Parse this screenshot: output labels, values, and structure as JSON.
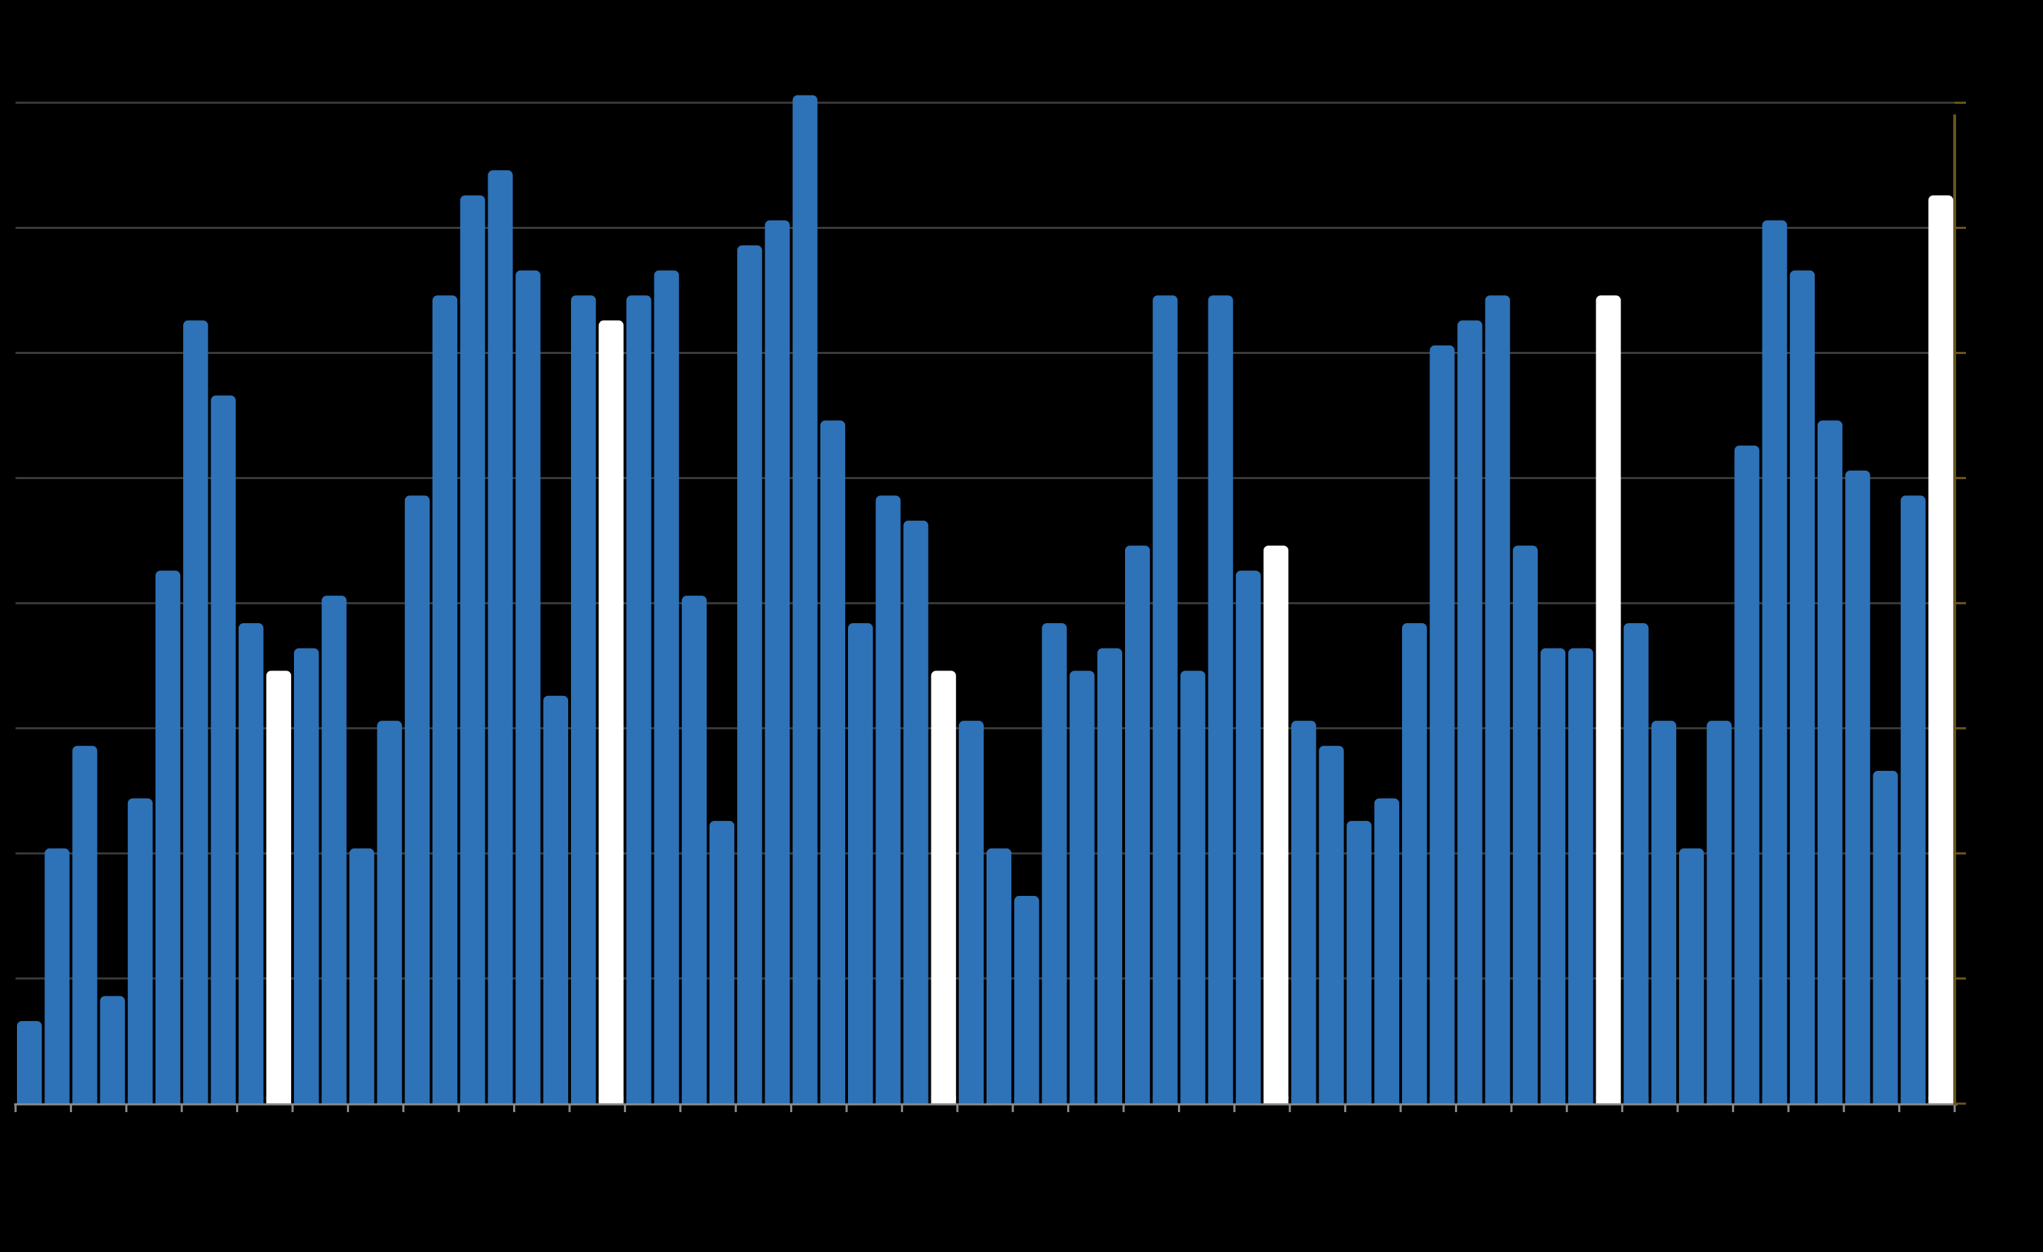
{
  "chart_data": {
    "type": "bar",
    "values": [
      3.3,
      10.2,
      14.3,
      4.3,
      12.2,
      21.3,
      31.3,
      28.3,
      19.2,
      17.3,
      18.2,
      20.3,
      10.2,
      15.3,
      24.3,
      32.3,
      36.3,
      37.3,
      33.3,
      16.3,
      32.3,
      31.3,
      32.3,
      33.3,
      20.3,
      11.3,
      34.3,
      35.3,
      40.3,
      27.3,
      19.2,
      24.3,
      23.3,
      17.3,
      15.3,
      10.2,
      8.3,
      19.2,
      17.3,
      18.2,
      22.3,
      32.3,
      17.3,
      32.3,
      21.3,
      22.3,
      15.3,
      14.3,
      11.3,
      12.2,
      19.2,
      30.3,
      31.3,
      32.3,
      22.3,
      18.2,
      18.2,
      32.3,
      19.2,
      15.3,
      10.2,
      15.3,
      26.3,
      35.3,
      33.3,
      27.3,
      25.3,
      13.3,
      24.3,
      36.3
    ],
    "highlighted_indices": [
      9,
      21,
      33,
      45,
      57,
      69
    ],
    "ylim": [
      0,
      41
    ],
    "gridlines": [
      5,
      10,
      15,
      20,
      25,
      30,
      35,
      40
    ],
    "grid": true,
    "x_tick_count": 36,
    "colors": {
      "background": "#000000",
      "bar": "#2E72B8",
      "highlight": "#FFFFFF",
      "grid": "#3A3A3A",
      "axis": "#6B5518"
    }
  }
}
